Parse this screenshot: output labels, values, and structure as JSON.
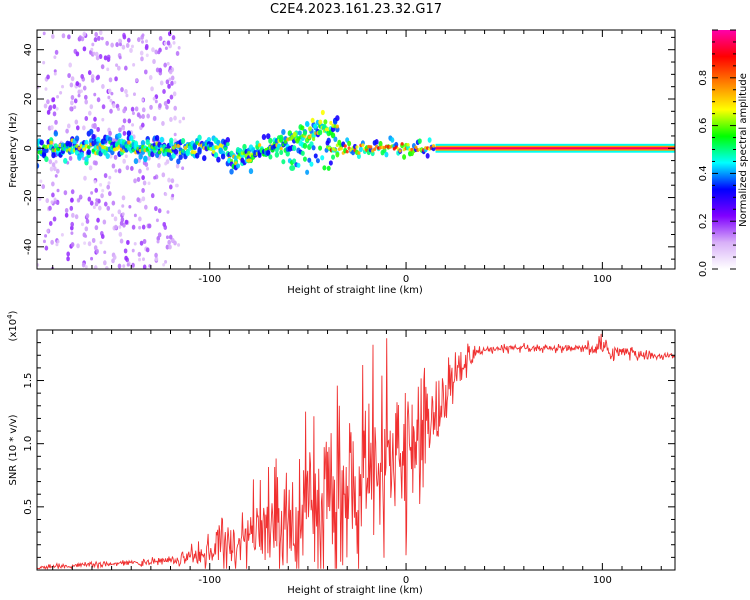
{
  "title": "C2E4.2023.161.23.32.G17",
  "colors": {
    "snr_line": "#f03030",
    "axis": "#000000"
  },
  "chart_data": [
    {
      "type": "heatmap",
      "xlabel": "Height of straight line (km)",
      "ylabel": "Frequency (Hz)",
      "xlim": [
        -188,
        137
      ],
      "ylim": [
        -49,
        48
      ],
      "xticks": [
        -100,
        0,
        100
      ],
      "yticks": [
        -40,
        -20,
        0,
        20,
        40
      ],
      "colorbar": {
        "label": "Normalized spectral amplitude",
        "range": [
          0,
          1
        ],
        "ticks": [
          "0.0",
          "0.2",
          "0.4",
          "0.6",
          "0.8"
        ],
        "colormap": [
          "#ffffff",
          "#d8b0f8",
          "#8000ff",
          "#0000ff",
          "#00ffff",
          "#00ff00",
          "#ffff00",
          "#ff8000",
          "#ff0000",
          "#ff00aa"
        ]
      },
      "features": [
        {
          "name": "scattered noise",
          "x_range": [
            -188,
            -115
          ],
          "freq_range": [
            -49,
            48
          ],
          "amplitude": 0.15
        },
        {
          "name": "broad band",
          "x_range": [
            -188,
            -90
          ],
          "freq_center": 0,
          "freq_halfwidth": 4,
          "amplitude": 0.55
        },
        {
          "name": "tilted band",
          "x_range": [
            -90,
            -40
          ],
          "freq_center_from": -5,
          "freq_center_to": 10,
          "amplitude": 0.6
        },
        {
          "name": "dips and branches",
          "x_range": [
            -60,
            10
          ],
          "freq_center": -2,
          "amplitude": 0.55
        },
        {
          "name": "stable carrier",
          "x_range": [
            15,
            137
          ],
          "freq_center": 0,
          "freq_halfwidth": 1.5,
          "amplitude": 0.9
        }
      ]
    },
    {
      "type": "line",
      "xlabel": "Height of straight line (km)",
      "ylabel": "SNR (10 * v/v)",
      "yscale_label": "(x10",
      "yscale_exp": "4",
      "yscale_close": ")",
      "xlim": [
        -188,
        137
      ],
      "ylim": [
        0,
        1.9
      ],
      "xticks": [
        -100,
        0,
        100
      ],
      "yticks": [
        "0.5",
        "1.0",
        "1.5"
      ],
      "series": [
        {
          "color": "#f03030",
          "profile": [
            [
              -188,
              0.02
            ],
            [
              -160,
              0.04
            ],
            [
              -130,
              0.06
            ],
            [
              -110,
              0.1
            ],
            [
              -95,
              0.18
            ],
            [
              -80,
              0.25
            ],
            [
              -65,
              0.35
            ],
            [
              -50,
              0.45
            ],
            [
              -35,
              0.5
            ],
            [
              -25,
              0.6
            ],
            [
              -15,
              0.75
            ],
            [
              -5,
              0.85
            ],
            [
              5,
              1.0
            ],
            [
              15,
              1.25
            ],
            [
              22,
              1.45
            ],
            [
              30,
              1.65
            ],
            [
              40,
              1.74
            ],
            [
              60,
              1.75
            ],
            [
              80,
              1.75
            ],
            [
              100,
              1.75
            ],
            [
              120,
              1.7
            ],
            [
              137,
              1.69
            ]
          ],
          "noise_amplitude": [
            [
              -188,
              0.015
            ],
            [
              -120,
              0.03
            ],
            [
              -100,
              0.12
            ],
            [
              -80,
              0.22
            ],
            [
              -60,
              0.45
            ],
            [
              -40,
              0.6
            ],
            [
              -20,
              0.6
            ],
            [
              -5,
              0.5
            ],
            [
              10,
              0.4
            ],
            [
              25,
              0.2
            ],
            [
              40,
              0.03
            ],
            [
              90,
              0.03
            ],
            [
              105,
              0.08
            ],
            [
              120,
              0.04
            ],
            [
              137,
              0.02
            ]
          ]
        }
      ]
    }
  ]
}
